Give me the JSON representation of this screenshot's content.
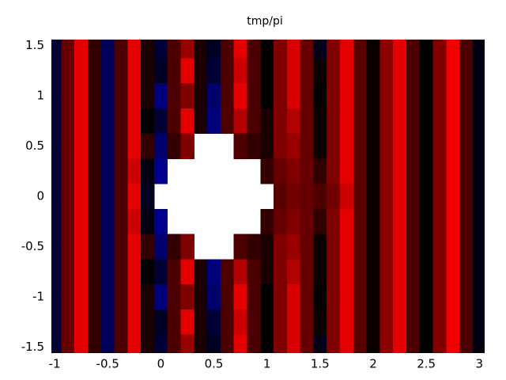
{
  "chart_data": {
    "type": "heatmap",
    "title": "tmp/pi",
    "x": [
      -1,
      -0.875,
      -0.75,
      -0.625,
      -0.5,
      -0.375,
      -0.25,
      -0.125,
      0,
      0.125,
      0.25,
      0.375,
      0.5,
      0.625,
      0.75,
      0.875,
      1,
      1.125,
      1.25,
      1.375,
      1.5,
      1.625,
      1.75,
      1.875,
      2,
      2.125,
      2.25,
      2.375,
      2.5,
      2.625,
      2.75,
      2.875,
      3
    ],
    "y": [
      1.5,
      1.25,
      1,
      0.75,
      0.5,
      0.25,
      0,
      -0.25,
      -0.5,
      -0.75,
      -1,
      -1.25,
      -1.5
    ],
    "z": [
      [
        -0.3,
        0.4,
        0.9,
        0.2,
        -0.5,
        0.3,
        0.9,
        0.1,
        -0.3,
        0.3,
        0.6,
        0.1,
        -0.2,
        0.3,
        0.9,
        0.3,
        0.0,
        0.5,
        0.85,
        0.4,
        -0.15,
        0.5,
        0.9,
        0.35,
        0.05,
        0.55,
        0.9,
        0.3,
        0.0,
        0.5,
        0.95,
        0.3,
        -0.1
      ],
      [
        -0.3,
        0.4,
        0.9,
        0.2,
        -0.5,
        0.3,
        0.9,
        0.1,
        -0.2,
        0.3,
        0.9,
        0.1,
        -0.3,
        0.3,
        0.8,
        0.3,
        0.0,
        0.5,
        0.85,
        0.4,
        0.05,
        0.5,
        0.9,
        0.35,
        0.05,
        0.55,
        0.9,
        0.3,
        0.0,
        0.5,
        0.95,
        0.3,
        -0.1
      ],
      [
        -0.3,
        0.4,
        0.9,
        0.2,
        -0.5,
        0.3,
        0.9,
        0.1,
        -0.7,
        0.3,
        0.5,
        0.1,
        -0.6,
        0.3,
        0.9,
        0.3,
        0.0,
        0.5,
        0.85,
        0.4,
        0.0,
        0.5,
        0.9,
        0.35,
        0.05,
        0.55,
        0.9,
        0.3,
        0.0,
        0.5,
        0.95,
        0.3,
        -0.1
      ],
      [
        -0.3,
        0.4,
        0.9,
        0.2,
        -0.5,
        0.3,
        0.9,
        0.0,
        -0.3,
        0.3,
        0.9,
        0.1,
        -0.7,
        0.3,
        0.7,
        0.3,
        0.1,
        0.5,
        0.7,
        0.4,
        0.05,
        0.5,
        0.9,
        0.35,
        0.05,
        0.55,
        0.9,
        0.3,
        0.0,
        0.5,
        0.95,
        0.3,
        -0.1
      ],
      [
        -0.3,
        0.4,
        0.9,
        0.2,
        -0.5,
        0.3,
        0.9,
        0.2,
        -0.6,
        0.2,
        0.5,
        null,
        null,
        null,
        0.3,
        0.2,
        0.1,
        0.5,
        0.6,
        0.4,
        0.05,
        0.5,
        0.9,
        0.35,
        0.05,
        0.55,
        0.9,
        0.3,
        0.0,
        0.5,
        0.95,
        0.3,
        -0.1
      ],
      [
        -0.3,
        0.4,
        0.9,
        0.2,
        -0.5,
        0.3,
        0.8,
        -0.1,
        -0.8,
        null,
        null,
        null,
        null,
        null,
        null,
        null,
        0.2,
        0.4,
        0.5,
        0.4,
        0.2,
        0.5,
        0.9,
        0.35,
        0.05,
        0.55,
        0.9,
        0.3,
        0.0,
        0.5,
        0.95,
        0.3,
        -0.1
      ],
      [
        -0.3,
        0.4,
        0.9,
        0.2,
        -0.5,
        0.3,
        0.9,
        -0.2,
        null,
        null,
        null,
        null,
        null,
        null,
        null,
        null,
        null,
        0.35,
        0.45,
        0.4,
        0.3,
        0.45,
        0.8,
        0.35,
        0.05,
        0.55,
        0.9,
        0.3,
        0.0,
        0.5,
        0.95,
        0.3,
        -0.1
      ],
      [
        -0.3,
        0.4,
        0.9,
        0.2,
        -0.5,
        0.3,
        0.8,
        -0.1,
        -0.8,
        null,
        null,
        null,
        null,
        null,
        null,
        null,
        0.2,
        0.4,
        0.5,
        0.4,
        0.2,
        0.5,
        0.9,
        0.35,
        0.05,
        0.55,
        0.9,
        0.3,
        0.0,
        0.5,
        0.95,
        0.3,
        -0.1
      ],
      [
        -0.3,
        0.4,
        0.9,
        0.2,
        -0.5,
        0.3,
        0.9,
        0.2,
        -0.6,
        0.2,
        0.5,
        null,
        null,
        null,
        0.3,
        0.2,
        0.1,
        0.5,
        0.6,
        0.4,
        0.05,
        0.5,
        0.9,
        0.35,
        0.05,
        0.55,
        0.9,
        0.3,
        0.0,
        0.5,
        0.95,
        0.3,
        -0.1
      ],
      [
        -0.3,
        0.4,
        0.9,
        0.2,
        -0.5,
        0.3,
        0.9,
        0.0,
        -0.3,
        0.3,
        0.9,
        0.1,
        -0.7,
        0.3,
        0.7,
        0.3,
        0.1,
        0.5,
        0.7,
        0.4,
        0.05,
        0.5,
        0.9,
        0.35,
        0.05,
        0.55,
        0.9,
        0.3,
        0.0,
        0.5,
        0.95,
        0.3,
        -0.1
      ],
      [
        -0.3,
        0.4,
        0.9,
        0.2,
        -0.5,
        0.3,
        0.9,
        0.1,
        -0.7,
        0.3,
        0.5,
        0.1,
        -0.6,
        0.3,
        0.9,
        0.3,
        0.0,
        0.5,
        0.85,
        0.4,
        0.0,
        0.5,
        0.9,
        0.35,
        0.05,
        0.55,
        0.9,
        0.3,
        0.0,
        0.5,
        0.95,
        0.3,
        -0.1
      ],
      [
        -0.3,
        0.4,
        0.9,
        0.2,
        -0.5,
        0.3,
        0.9,
        0.1,
        -0.2,
        0.3,
        0.9,
        0.1,
        -0.3,
        0.3,
        0.8,
        0.3,
        0.0,
        0.5,
        0.85,
        0.4,
        0.05,
        0.5,
        0.9,
        0.35,
        0.05,
        0.55,
        0.9,
        0.3,
        0.0,
        0.5,
        0.95,
        0.3,
        -0.1
      ],
      [
        -0.3,
        0.4,
        0.9,
        0.2,
        -0.5,
        0.3,
        0.9,
        0.1,
        -0.3,
        0.3,
        0.6,
        0.1,
        -0.2,
        0.3,
        0.9,
        0.3,
        0.0,
        0.5,
        0.85,
        0.4,
        -0.15,
        0.5,
        0.9,
        0.35,
        0.05,
        0.55,
        0.9,
        0.3,
        0.0,
        0.5,
        0.95,
        0.3,
        -0.1
      ]
    ],
    "zlim": [
      -1,
      1
    ],
    "colors": [
      "#0000b0",
      "#000000",
      "#ff0000"
    ],
    "xlim": [
      -1.03,
      3.05
    ],
    "ylim": [
      -1.56,
      1.56
    ],
    "xticks": [
      -1,
      -0.5,
      0,
      0.5,
      1,
      1.5,
      2,
      2.5,
      3
    ],
    "yticks": [
      -1.5,
      -1,
      -0.5,
      0,
      0.5,
      1,
      1.5
    ]
  }
}
